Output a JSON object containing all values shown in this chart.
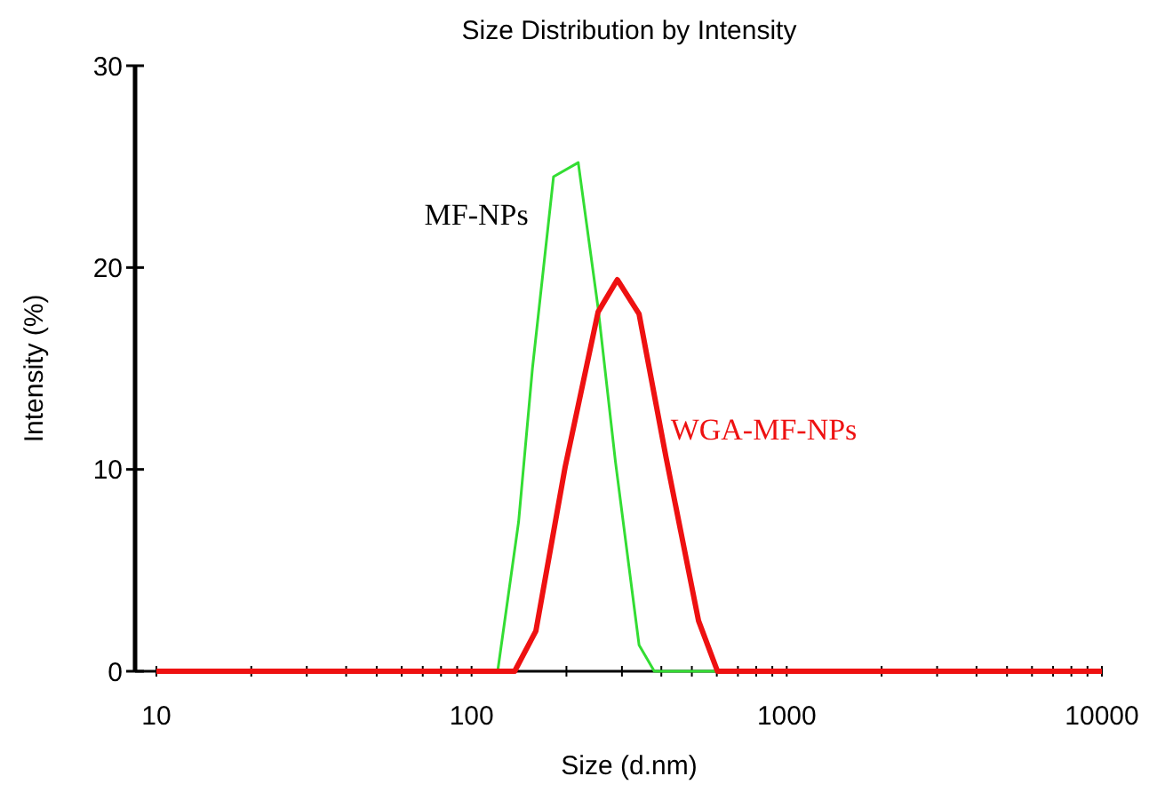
{
  "chart_data": {
    "type": "line",
    "title": "Size Distribution by Intensity",
    "xlabel": "Size (d.nm)",
    "ylabel": "Intensity (%)",
    "log": "x",
    "xlim": [
      10,
      10000
    ],
    "ylim": [
      0,
      30
    ],
    "xticks": [
      10,
      {
        "value": 20,
        "label": null
      },
      {
        "value": 30,
        "label": null
      },
      {
        "value": 40,
        "label": null
      },
      {
        "value": 50,
        "label": null
      },
      {
        "value": 60,
        "label": null
      },
      {
        "value": 70,
        "label": null
      },
      {
        "value": 80,
        "label": null
      },
      {
        "value": 90,
        "label": null
      },
      100,
      {
        "value": 200,
        "label": null
      },
      {
        "value": 300,
        "label": null
      },
      {
        "value": 400,
        "label": null
      },
      {
        "value": 500,
        "label": null
      },
      {
        "value": 600,
        "label": null
      },
      {
        "value": 700,
        "label": null
      },
      {
        "value": 800,
        "label": null
      },
      {
        "value": 900,
        "label": null
      },
      1000,
      {
        "value": 2000,
        "label": null
      },
      {
        "value": 3000,
        "label": null
      },
      {
        "value": 4000,
        "label": null
      },
      {
        "value": 5000,
        "label": null
      },
      {
        "value": 6000,
        "label": null
      },
      {
        "value": 7000,
        "label": null
      },
      {
        "value": 8000,
        "label": null
      },
      {
        "value": 9000,
        "label": null
      },
      10000
    ],
    "yticks": [
      0,
      10,
      20,
      30
    ],
    "grid": false,
    "line_style": "solid",
    "series": [
      {
        "name": "MF-NPs",
        "color": "#33dd33",
        "x": [
          10,
          121,
          141,
          156,
          182,
          218,
          252,
          286,
          340,
          380,
          10000
        ],
        "values": [
          0,
          0,
          7.4,
          15.0,
          24.5,
          25.2,
          18,
          10.4,
          1.3,
          0,
          0
        ]
      },
      {
        "name": "WGA-MF-NPs",
        "color": "#ee1111",
        "x": [
          10,
          137,
          160,
          198,
          252,
          290,
          340,
          414,
          525,
          603,
          10000
        ],
        "values": [
          0,
          0,
          2.0,
          10.1,
          17.8,
          19.4,
          17.7,
          10.6,
          2.5,
          0,
          0
        ]
      }
    ]
  }
}
